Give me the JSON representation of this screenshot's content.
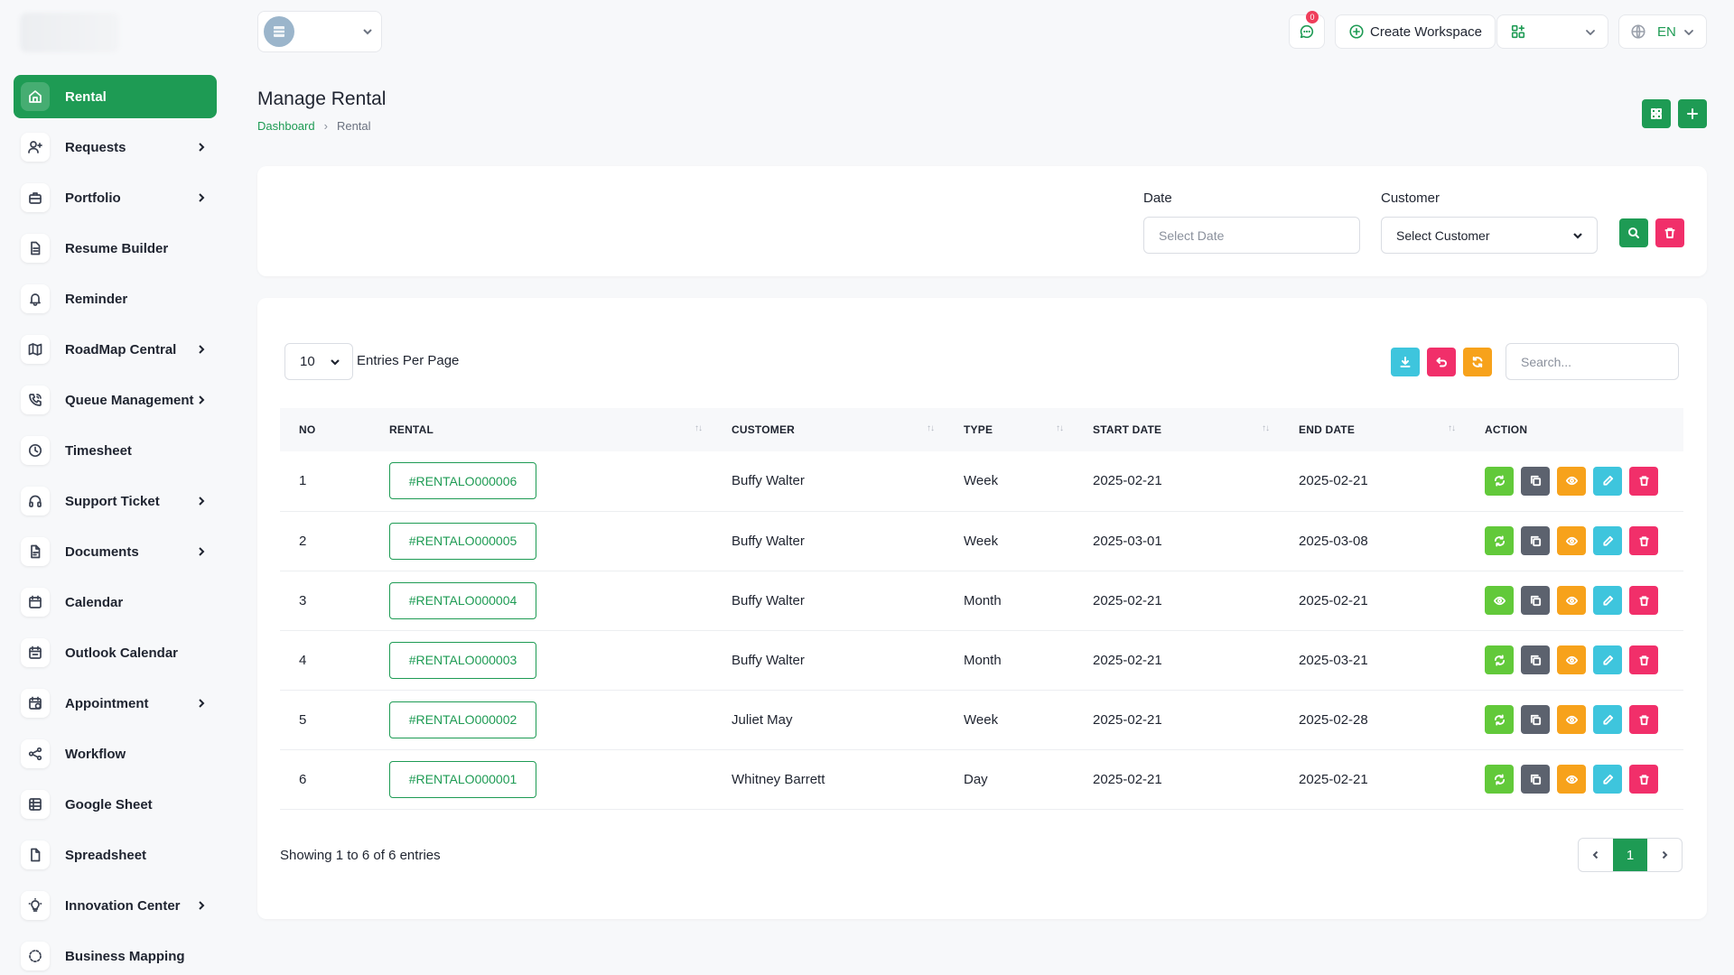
{
  "colors": {
    "primary": "#1e9b54",
    "lime": "#62c93a",
    "dark": "#5c626e",
    "orange": "#f7a21b",
    "cyan": "#3ec5dd",
    "pink": "#f12f6a",
    "badge": "#ef3e5b"
  },
  "sidebar": {
    "items": [
      {
        "label": "Rental",
        "icon": "home-icon",
        "active": true,
        "submenu": false
      },
      {
        "label": "Requests",
        "icon": "user-plus-icon",
        "submenu": true
      },
      {
        "label": "Portfolio",
        "icon": "briefcase-icon",
        "submenu": true
      },
      {
        "label": "Resume Builder",
        "icon": "file-text-icon",
        "submenu": false
      },
      {
        "label": "Reminder",
        "icon": "bell-icon",
        "submenu": false
      },
      {
        "label": "RoadMap Central",
        "icon": "map-icon",
        "submenu": true
      },
      {
        "label": "Queue Management",
        "icon": "phone-call-icon",
        "submenu": true
      },
      {
        "label": "Timesheet",
        "icon": "clock-icon",
        "submenu": false
      },
      {
        "label": "Support Ticket",
        "icon": "headphones-icon",
        "submenu": true
      },
      {
        "label": "Documents",
        "icon": "file-icon",
        "submenu": true
      },
      {
        "label": "Calendar",
        "icon": "calendar-icon",
        "submenu": false
      },
      {
        "label": "Outlook Calendar",
        "icon": "calendar-check-icon",
        "submenu": false
      },
      {
        "label": "Appointment",
        "icon": "calendar-clock-icon",
        "submenu": true
      },
      {
        "label": "Workflow",
        "icon": "share-icon",
        "submenu": false
      },
      {
        "label": "Google Sheet",
        "icon": "table-icon",
        "submenu": false
      },
      {
        "label": "Spreadsheet",
        "icon": "sheet-icon",
        "submenu": false
      },
      {
        "label": "Innovation Center",
        "icon": "bulb-icon",
        "submenu": true
      },
      {
        "label": "Business Mapping",
        "icon": "dashed-circle-icon",
        "submenu": false
      }
    ]
  },
  "header": {
    "notification_count": "0",
    "create_workspace_label": "Create Workspace",
    "language": "EN"
  },
  "page": {
    "title": "Manage Rental",
    "breadcrumb_home": "Dashboard",
    "breadcrumb_current": "Rental"
  },
  "filters": {
    "date_label": "Date",
    "date_placeholder": "Select Date",
    "customer_label": "Customer",
    "customer_value": "Select Customer"
  },
  "table_controls": {
    "per_page_value": "10",
    "per_page_label": "Entries Per Page",
    "search_placeholder": "Search..."
  },
  "table": {
    "columns": [
      "NO",
      "RENTAL",
      "CUSTOMER",
      "TYPE",
      "START DATE",
      "END DATE",
      "ACTION"
    ],
    "rows": [
      {
        "no": "1",
        "rental": "#RENTALO000006",
        "customer": "Buffy Walter",
        "type": "Week",
        "start": "2025-02-21",
        "end": "2025-02-21",
        "first_action": "repeat-icon"
      },
      {
        "no": "2",
        "rental": "#RENTALO000005",
        "customer": "Buffy Walter",
        "type": "Week",
        "start": "2025-03-01",
        "end": "2025-03-08",
        "first_action": "repeat-icon"
      },
      {
        "no": "3",
        "rental": "#RENTALO000004",
        "customer": "Buffy Walter",
        "type": "Month",
        "start": "2025-02-21",
        "end": "2025-02-21",
        "first_action": "eye-icon"
      },
      {
        "no": "4",
        "rental": "#RENTALO000003",
        "customer": "Buffy Walter",
        "type": "Month",
        "start": "2025-02-21",
        "end": "2025-03-21",
        "first_action": "repeat-icon"
      },
      {
        "no": "5",
        "rental": "#RENTALO000002",
        "customer": "Juliet May",
        "type": "Week",
        "start": "2025-02-21",
        "end": "2025-02-28",
        "first_action": "repeat-icon"
      },
      {
        "no": "6",
        "rental": "#RENTALO000001",
        "customer": "Whitney Barrett",
        "type": "Day",
        "start": "2025-02-21",
        "end": "2025-02-21",
        "first_action": "repeat-icon"
      }
    ]
  },
  "footer": {
    "showing_text": "Showing 1 to 6 of 6 entries",
    "current_page": "1"
  }
}
